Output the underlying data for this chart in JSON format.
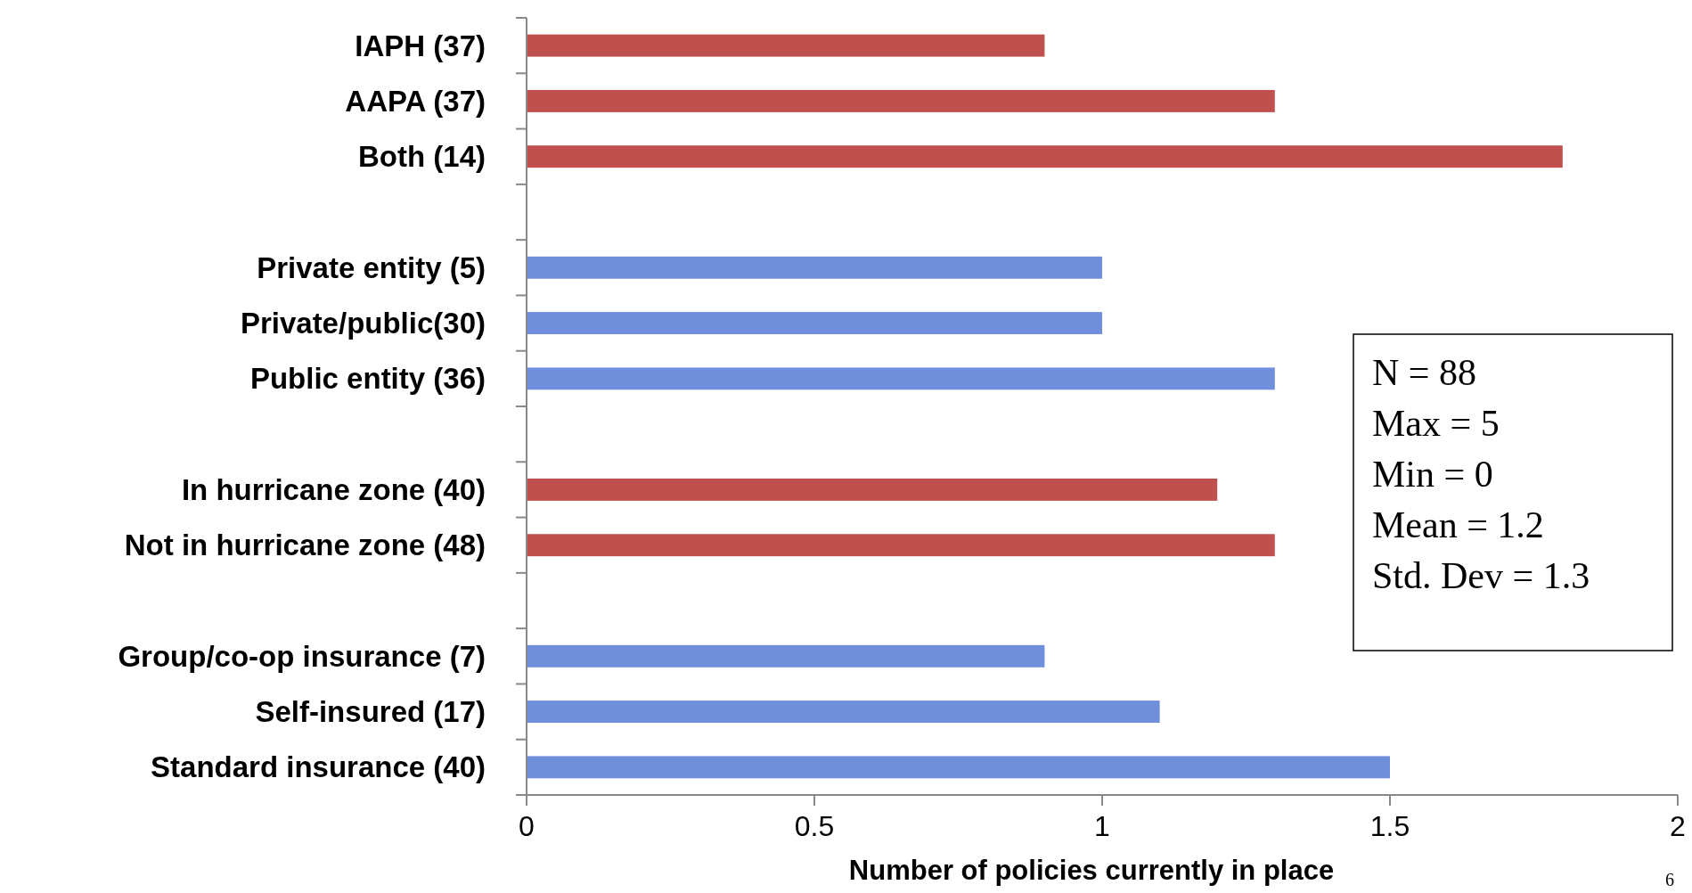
{
  "chart_data": {
    "type": "bar",
    "orientation": "horizontal",
    "categories": [
      "IAPH (37)",
      "AAPA (37)",
      "Both (14)",
      null,
      "Private entity (5)",
      "Private/public(30)",
      "Public entity (36)",
      null,
      "In hurricane zone (40)",
      "Not in hurricane zone (48)",
      null,
      "Group/co-op insurance (7)",
      "Self-insured (17)",
      "Standard insurance (40)"
    ],
    "values": [
      0.9,
      1.3,
      1.8,
      null,
      1.0,
      1.0,
      1.3,
      null,
      1.2,
      1.3,
      null,
      0.9,
      1.1,
      1.5
    ],
    "colors": [
      "#c0504d",
      "#c0504d",
      "#c0504d",
      null,
      "#6f8fdc",
      "#6f8fdc",
      "#6f8fdc",
      null,
      "#c0504d",
      "#c0504d",
      null,
      "#6f8fdc",
      "#6f8fdc",
      "#6f8fdc"
    ],
    "xlim": [
      0,
      2
    ],
    "xticks": [
      0,
      0.5,
      1,
      1.5,
      2
    ],
    "xlabel": "Number of policies currently in place",
    "annotations": [
      "N = 88",
      "Max = 5",
      "Min = 0",
      "Mean = 1.2",
      "Std. Dev = 1.3",
      "6"
    ]
  }
}
